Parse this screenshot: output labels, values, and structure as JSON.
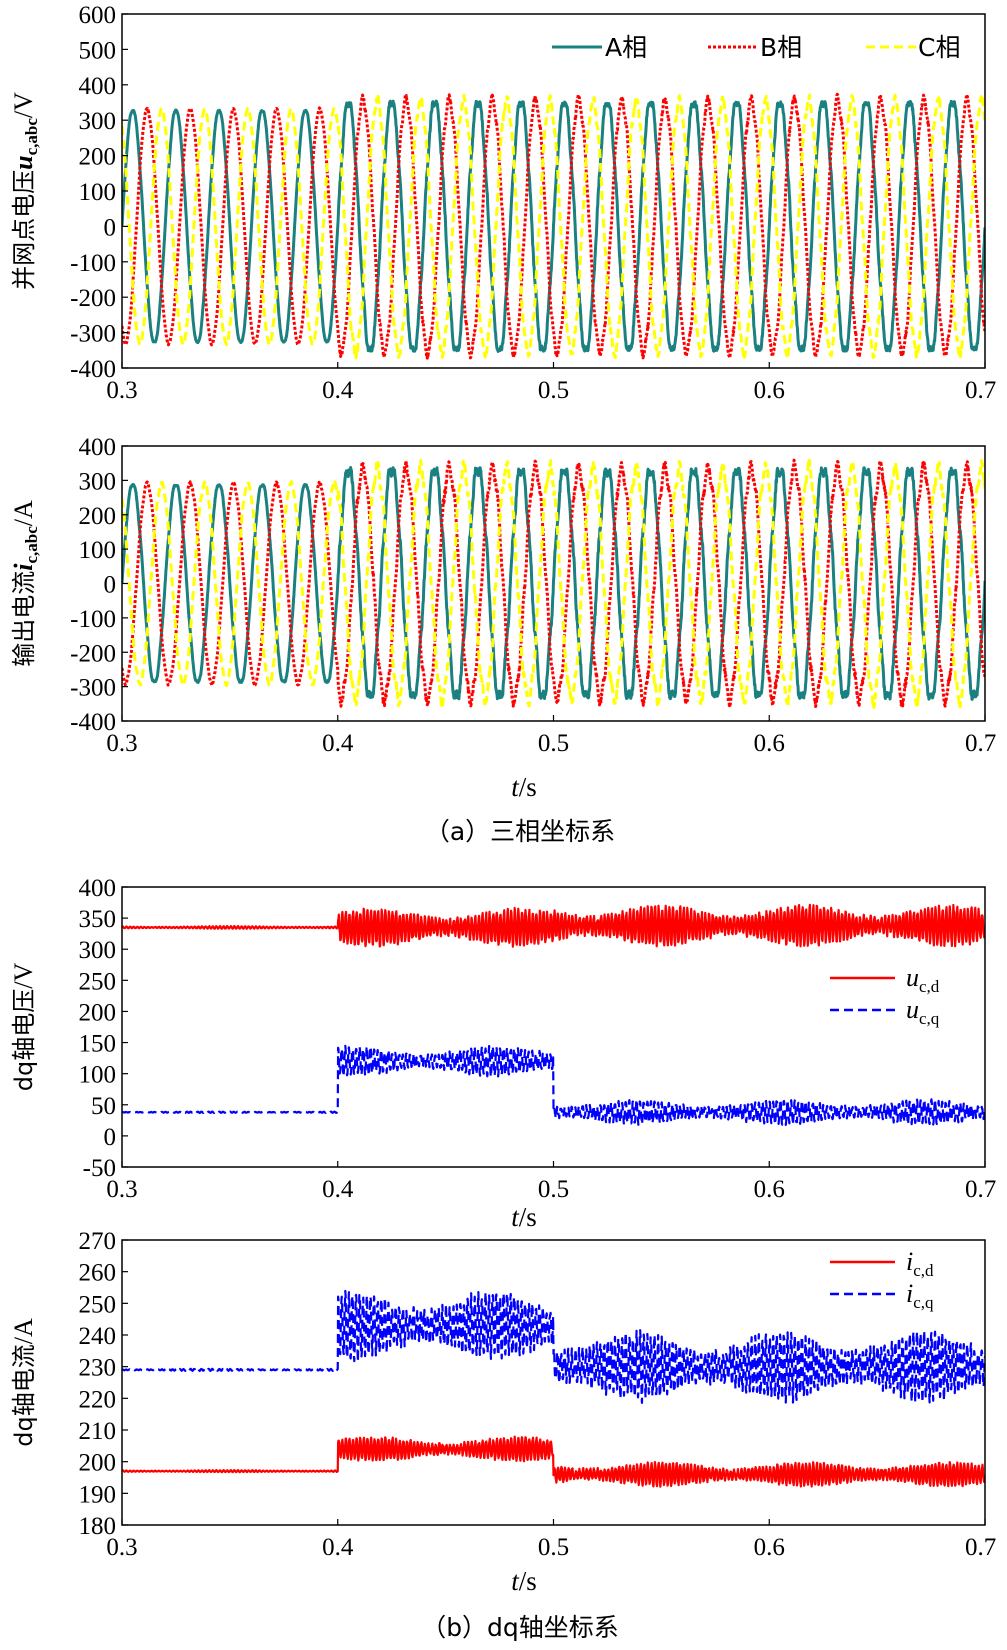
{
  "figure": {
    "caption_a": "（a）三相坐标系",
    "caption_b": "（b）dq轴坐标系",
    "xlabel": "t/s"
  },
  "chart_data": [
    {
      "id": "grid_voltage_abc",
      "type": "line",
      "ylabel": {
        "cn": "并网点电压",
        "sym": "u",
        "sub": "c,abc",
        "unit": "/V"
      },
      "xlim": [
        0.3,
        0.7
      ],
      "ylim": [
        -400,
        600
      ],
      "xticks": [
        "0.3",
        "0.4",
        "0.5",
        "0.6",
        "0.7"
      ],
      "yticks": [
        600,
        500,
        400,
        300,
        200,
        100,
        0,
        -100,
        -200,
        -300,
        -400
      ],
      "legend_position": "top-right",
      "series": [
        {
          "name": "A相",
          "color": "#1a8080",
          "dash": "solid",
          "model": {
            "freq_hz": 50,
            "phase_deg": 0,
            "x": [
              0.3,
              0.4,
              0.4,
              0.7
            ],
            "amplitude": [
              330,
              330,
              355,
              355
            ],
            "ripple": 18
          }
        },
        {
          "name": "B相",
          "color": "#ff0000",
          "dash": "dotted",
          "model": {
            "freq_hz": 50,
            "phase_deg": -120,
            "x": [
              0.3,
              0.4,
              0.4,
              0.7
            ],
            "amplitude": [
              330,
              330,
              355,
              355
            ],
            "ripple": 18
          }
        },
        {
          "name": "C相",
          "color": "#ffff00",
          "dash": "dashed",
          "model": {
            "freq_hz": 50,
            "phase_deg": 120,
            "x": [
              0.3,
              0.4,
              0.4,
              0.7
            ],
            "amplitude": [
              330,
              330,
              355,
              355
            ],
            "ripple": 18
          }
        }
      ]
    },
    {
      "id": "output_current_abc",
      "type": "line",
      "ylabel": {
        "cn": "输出电流",
        "sym": "i",
        "sub": "c,abc",
        "unit": "/A"
      },
      "xlim": [
        0.3,
        0.7
      ],
      "ylim": [
        -400,
        400
      ],
      "xticks": [
        "0.3",
        "0.4",
        "0.5",
        "0.6",
        "0.7"
      ],
      "yticks": [
        400,
        300,
        200,
        100,
        0,
        -100,
        -200,
        -300,
        -400
      ],
      "series": [
        {
          "name": "A相",
          "color": "#1a8080",
          "dash": "solid",
          "model": {
            "freq_hz": 50,
            "phase_deg": 0,
            "x": [
              0.3,
              0.4,
              0.4,
              0.7
            ],
            "amplitude": [
              290,
              290,
              335,
              335
            ],
            "ripple": 25
          }
        },
        {
          "name": "B相",
          "color": "#ff0000",
          "dash": "dotted",
          "model": {
            "freq_hz": 50,
            "phase_deg": -120,
            "x": [
              0.3,
              0.4,
              0.4,
              0.7
            ],
            "amplitude": [
              290,
              290,
              335,
              335
            ],
            "ripple": 25
          }
        },
        {
          "name": "C相",
          "color": "#ffff00",
          "dash": "dashed",
          "model": {
            "freq_hz": 50,
            "phase_deg": 120,
            "x": [
              0.3,
              0.4,
              0.4,
              0.7
            ],
            "amplitude": [
              290,
              290,
              335,
              335
            ],
            "ripple": 25
          }
        }
      ]
    },
    {
      "id": "dq_voltage",
      "type": "line",
      "ylabel": {
        "cn": "dq轴电压",
        "sym": "",
        "sub": "",
        "unit": "/V"
      },
      "xlabel": "t/s",
      "xlim": [
        0.3,
        0.7
      ],
      "ylim": [
        -50,
        400
      ],
      "xticks": [
        "0.3",
        "0.4",
        "0.5",
        "0.6",
        "0.7"
      ],
      "yticks": [
        400,
        350,
        300,
        250,
        200,
        150,
        100,
        50,
        0,
        -50
      ],
      "legend_position": "center-right",
      "series": [
        {
          "name": "u_c,d",
          "sym": "u",
          "sub": "c,d",
          "color": "#ff0000",
          "dash": "solid",
          "model": {
            "x": [
              0.3,
              0.4,
              0.4,
              0.5,
              0.5,
              0.7
            ],
            "mean": [
              335,
              335,
              335,
              335,
              338,
              338
            ],
            "ripple": [
              2,
              2,
              28,
              28,
              30,
              30
            ]
          }
        },
        {
          "name": "u_c,q",
          "sym": "u",
          "sub": "c,q",
          "color": "#0000ff",
          "dash": "dashed",
          "model": {
            "x": [
              0.3,
              0.4,
              0.4,
              0.5,
              0.5,
              0.7
            ],
            "mean": [
              38,
              38,
              120,
              120,
              38,
              38
            ],
            "ripple": [
              1,
              1,
              22,
              22,
              18,
              18
            ]
          }
        }
      ]
    },
    {
      "id": "dq_current",
      "type": "line",
      "ylabel": {
        "cn": "dq轴电流",
        "sym": "",
        "sub": "",
        "unit": "/A"
      },
      "xlim": [
        0.3,
        0.7
      ],
      "ylim": [
        180,
        270
      ],
      "xticks": [
        "0.3",
        "0.4",
        "0.5",
        "0.6",
        "0.7"
      ],
      "yticks": [
        270,
        260,
        250,
        240,
        230,
        220,
        210,
        200,
        190,
        180
      ],
      "legend_position": "top-right",
      "series": [
        {
          "name": "i_c,d",
          "sym": "i",
          "sub": "c,d",
          "color": "#ff0000",
          "dash": "solid",
          "model": {
            "x": [
              0.3,
              0.4,
              0.4,
              0.5,
              0.5,
              0.7
            ],
            "mean": [
              197,
              197,
              204,
              204,
              196,
              196
            ],
            "ripple": [
              0.3,
              0.3,
              3.5,
              3.5,
              3.5,
              3.5
            ]
          }
        },
        {
          "name": "i_c,q",
          "sym": "i",
          "sub": "c,q",
          "color": "#0000ff",
          "dash": "dashed",
          "model": {
            "x": [
              0.3,
              0.4,
              0.4,
              0.5,
              0.5,
              0.7
            ],
            "mean": [
              229,
              229,
              243,
              243,
              230,
              230
            ],
            "ripple": [
              0.3,
              0.3,
              10,
              10,
              10,
              10
            ]
          }
        }
      ]
    }
  ]
}
